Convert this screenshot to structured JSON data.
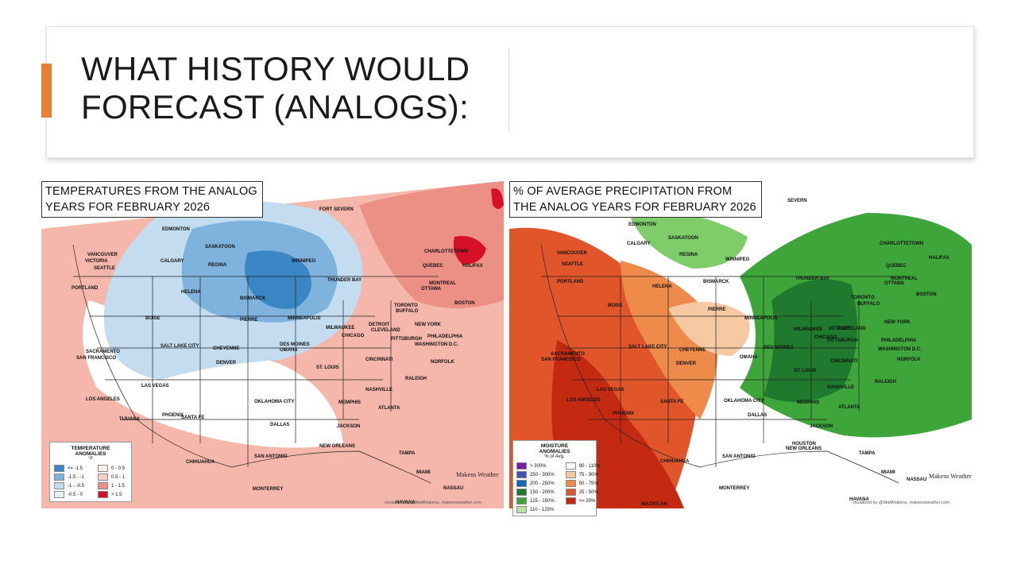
{
  "slide": {
    "title_line1": "WHAT HISTORY WOULD",
    "title_line2": "FORECAST (ANALOGS):"
  },
  "colors": {
    "accent": "#ed7d31",
    "cold_strong": "#3a86c4",
    "cold_mid": "#7fb2dc",
    "cold_light": "#c3dcef",
    "cool": "#e7f0f8",
    "warm_light": "#fbe3dd",
    "warm_mid": "#f5b7ab",
    "warm": "#ec8f85",
    "hot": "#d7102a",
    "wet_strong": "#1f7a2e",
    "wet_mid": "#3da53a",
    "wet_light": "#7fcc6b",
    "dry_light": "#f7c9a2",
    "dry_mid": "#ee8a4a",
    "dry": "#e0562a",
    "dry_strong": "#c42a12"
  },
  "temp_map": {
    "title_line1": "TEMPERATURES FROM THE ANALOG",
    "title_line2": "YEARS FOR FEBRUARY 2026",
    "legend": {
      "title_line1": "TEMPERATURE",
      "title_line2": "ANOMALIES",
      "unit": "°F",
      "items": [
        {
          "label": "<= -1.5",
          "color": "#3a86c4"
        },
        {
          "label": "0 - 0.5",
          "color": "#fdf0ec"
        },
        {
          "label": "-1.5 - -1",
          "color": "#7fb2dc"
        },
        {
          "label": "0.5 - 1",
          "color": "#f7cfc6"
        },
        {
          "label": "-1 - -0.5",
          "color": "#c3dcef"
        },
        {
          "label": "1 - 1.5",
          "color": "#ec8f85"
        },
        {
          "label": "-0.5 - 0",
          "color": "#e7f0f8"
        },
        {
          "label": "> 1.5",
          "color": "#d7102a"
        }
      ]
    },
    "cities": [
      "FORT SEVERN",
      "EDMONTON",
      "SASKATOON",
      "CALGARY",
      "REGINA",
      "WINNIPEG",
      "VANCOUVER",
      "VICTORIA",
      "SEATTLE",
      "CHARLOTTETOWN",
      "HALIFAX",
      "QUEBEC",
      "THUNDER BAY",
      "MONTREAL",
      "OTTAWA",
      "PORTLAND",
      "HELENA",
      "BISMARCK",
      "TORONTO",
      "BUFFALO",
      "BOSTON",
      "MINNEAPOLIS",
      "BOISE",
      "PIERRE",
      "MILWAUKEE",
      "DETROIT",
      "NEW YORK",
      "CLEVELAND",
      "CHICAGO",
      "DES MOINES",
      "PITTSBURGH",
      "PHILADELPHIA",
      "SACRAMENTO",
      "SAN FRANCISCO",
      "SALT LAKE CITY",
      "CHEYENNE",
      "OMAHA",
      "WASHINGTON D.C.",
      "NORFOLK",
      "DENVER",
      "CINCINNATI",
      "ST. LOUIS",
      "LAS VEGAS",
      "NASHVILLE",
      "RALEIGH",
      "LOS ANGELES",
      "SANTA FE",
      "MEMPHIS",
      "ATLANTA",
      "PHOENIX",
      "OKLAHOMA CITY",
      "TIJUANA",
      "DALLAS",
      "JACKSON",
      "CHIHUAHUA",
      "SAN ANTONIO",
      "NEW ORLEANS",
      "TAMPA",
      "MIAMI",
      "NASSAU",
      "HAVANA",
      "MONTERREY"
    ],
    "logo": "Makens Weather",
    "credit": "visualized by @MattMakens, makensweather.com"
  },
  "precip_map": {
    "title_line1": "% OF AVERAGE PRECIPITATION FROM",
    "title_line2": "THE ANALOG YEARS FOR FEBRUARY 2026",
    "legend": {
      "title_line1": "MOISTURE",
      "title_line2": "ANOMALIES",
      "unit": "% of Avg.",
      "items": [
        {
          "label": "> 300%",
          "color": "#7b1fa2"
        },
        {
          "label": "90 - 110%",
          "color": "#ffffff"
        },
        {
          "label": "250 - 300%",
          "color": "#3f51b5"
        },
        {
          "label": "75 - 90%",
          "color": "#f7c9a2"
        },
        {
          "label": "200 - 250%",
          "color": "#1565c0"
        },
        {
          "label": "50 - 75%",
          "color": "#ee8a4a"
        },
        {
          "label": "150 - 200%",
          "color": "#1f7a2e"
        },
        {
          "label": "25 - 50%",
          "color": "#e0562a"
        },
        {
          "label": "125 - 150%",
          "color": "#3da53a"
        },
        {
          "label": "<= 25%",
          "color": "#c42a12"
        },
        {
          "label": "110 - 125%",
          "color": "#b9e3a6"
        }
      ]
    },
    "cities": [
      "SEVERN",
      "EDMONTON",
      "SASKATOON",
      "CALGARY",
      "REGINA",
      "WINNIPEG",
      "CHARLOTTETOWN",
      "VANCOUVER",
      "HALIFAX",
      "SEATTLE",
      "QUEBEC",
      "THUNDER BAY",
      "MONTREAL",
      "OTTAWA",
      "PORTLAND",
      "HELENA",
      "BISMARCK",
      "TORONTO",
      "BUFFALO",
      "BOSTON",
      "MINNEAPOLIS",
      "BOISE",
      "PIERRE",
      "MILWAUKEE",
      "DETROIT",
      "NEW YORK",
      "CLEVELAND",
      "CHICAGO",
      "PHILADELPHIA",
      "PITTSBURGH",
      "SACRAMENTO",
      "SAN FRANCISCO",
      "SALT LAKE CITY",
      "CHEYENNE",
      "DES MOINES",
      "OMAHA",
      "WASHINGTON D.C.",
      "DENVER",
      "CINCINNATI",
      "NORFOLK",
      "ST. LOUIS",
      "RALEIGH",
      "LAS VEGAS",
      "NASHVILLE",
      "LOS ANGELES",
      "SANTA FE",
      "OKLAHOMA CITY",
      "MEMPHIS",
      "ATLANTA",
      "PHOENIX",
      "DALLAS",
      "JACKSON",
      "CHIHUAHUA",
      "HOUSTON",
      "NEW ORLEANS",
      "SAN ANTONIO",
      "TAMPA",
      "MIAMI",
      "NASSAU",
      "HAVANA",
      "MONTERREY",
      "MAZATLAN"
    ],
    "logo": "Makens Weather",
    "credit": "visualized by @MattMakens, makensweather.com"
  }
}
